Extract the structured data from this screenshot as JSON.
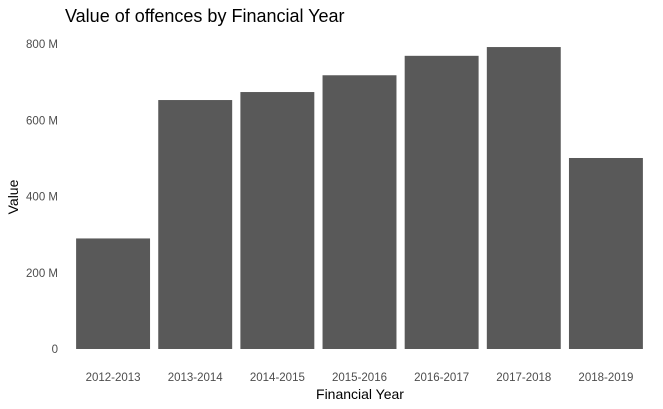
{
  "chart_data": {
    "type": "bar",
    "title": "Value of offences by Financial Year",
    "xlabel": "Financial Year",
    "ylabel": "Value",
    "categories": [
      "2012-2013",
      "2013-2014",
      "2014-2015",
      "2015-2016",
      "2016-2017",
      "2017-2018",
      "2018-2019"
    ],
    "values": [
      290000000,
      653000000,
      674000000,
      718000000,
      769000000,
      792000000,
      501000000
    ],
    "ylim": [
      0,
      800000000
    ],
    "yticks": [
      0,
      200000000,
      400000000,
      600000000,
      800000000
    ],
    "ytick_labels": [
      "0",
      "200 M",
      "400 M",
      "600 M",
      "800 M"
    ],
    "grid": false,
    "bar_color": "#595959"
  }
}
